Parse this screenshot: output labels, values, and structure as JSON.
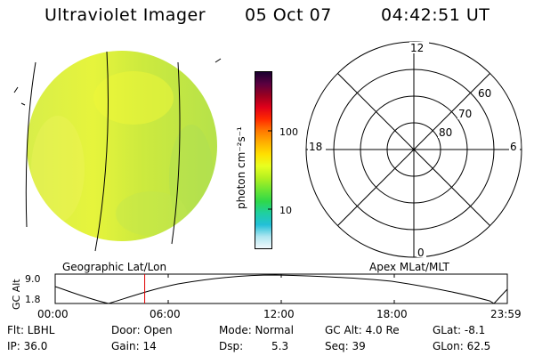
{
  "header": {
    "instrument": "Ultraviolet Imager",
    "date": "05 Oct 07",
    "time": "04:42:51 UT"
  },
  "colorbar": {
    "unit_label": "photon cm⁻²s⁻¹",
    "tick_100": "100",
    "tick_10": "10",
    "colors_top_to_bottom": [
      "#1a0030",
      "#5a0040",
      "#9a0020",
      "#e0001a",
      "#ff2a00",
      "#ff7800",
      "#ffb000",
      "#ffe000",
      "#e8ff20",
      "#b4f020",
      "#6ee632",
      "#2fd84a",
      "#1fcfa0",
      "#22c0d8",
      "#aee6f0",
      "#f0f8fc"
    ]
  },
  "polar": {
    "mlt_12": "12",
    "mlt_18": "18",
    "mlt_6": "6",
    "mlt_0": "0",
    "lat_60": "60",
    "lat_70": "70",
    "lat_80": "80"
  },
  "labels": {
    "geo": "Geographic Lat/Lon",
    "apex": "Apex MLat/MLT"
  },
  "orbit": {
    "axis_label": "GC Alt",
    "y_max": "9.0",
    "y_min": "1.8",
    "t_ticks": [
      "00:00",
      "06:00",
      "12:00",
      "18:00",
      "23:59"
    ],
    "current_time_fraction": 0.198
  },
  "info": {
    "flt": "Flt: LBHL",
    "door": "Door: Open",
    "mode": "Mode: Normal",
    "gcalt": "GC Alt: 4.0 Re",
    "glat": "GLat:  -8.1",
    "ip": "IP: 36.0",
    "gain": "Gain: 14",
    "dsp_label": "Dsp:",
    "dsp_value": "5.3",
    "seq": "Seq: 39",
    "glon": "GLon:  62.5"
  }
}
